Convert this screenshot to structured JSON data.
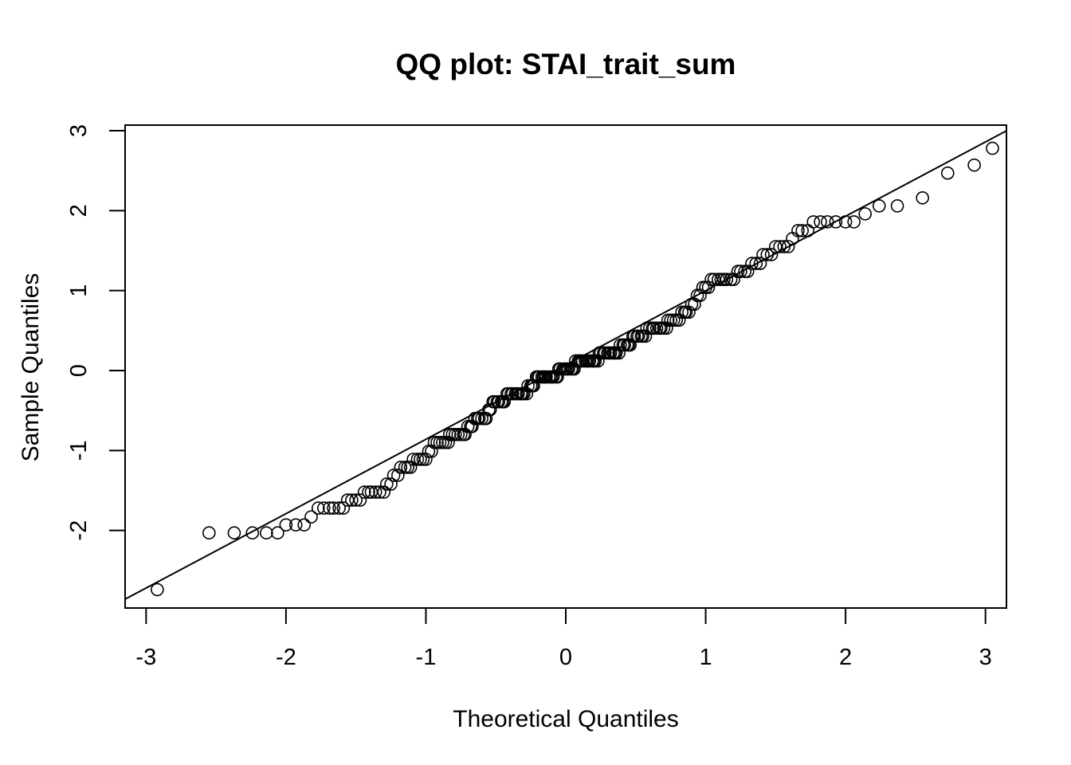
{
  "chart_data": {
    "type": "scatter",
    "title": "QQ plot: STAI_trait_sum",
    "xlabel": "Theoretical Quantiles",
    "ylabel": "Sample Quantiles",
    "xlim": [
      -3.15,
      3.15
    ],
    "ylim": [
      -2.97,
      3.07
    ],
    "x_ticks": [
      -3,
      -2,
      -1,
      0,
      1,
      2,
      3
    ],
    "x_tick_labels": [
      "-3",
      "-2",
      "-1",
      "0",
      "1",
      "2",
      "3"
    ],
    "y_ticks": [
      -2,
      -1,
      0,
      1,
      2,
      3
    ],
    "y_tick_labels": [
      "-2",
      "-1",
      "0",
      "1",
      "2",
      "3"
    ],
    "grid": false,
    "legend": false,
    "reference_line": {
      "intercept": 0.07,
      "slope": 0.93
    },
    "marker": "open-circle",
    "colors": {
      "points": "#000000",
      "line": "#000000",
      "background": "#ffffff"
    },
    "groups": [
      {
        "y": -2.74,
        "x": [
          -2.92
        ]
      },
      {
        "y": -2.03,
        "x": [
          -2.55,
          -2.37,
          -2.24,
          -2.14,
          -2.06
        ]
      },
      {
        "y": -1.93,
        "x": [
          -2.0,
          -1.93,
          -1.87
        ]
      },
      {
        "y": -1.83,
        "x": [
          -1.82
        ]
      },
      {
        "y": -1.72,
        "x": [
          -1.77,
          -1.73,
          -1.69,
          -1.66,
          -1.62,
          -1.59
        ]
      },
      {
        "y": -1.62,
        "x": [
          -1.56,
          -1.53,
          -1.5,
          -1.47
        ]
      },
      {
        "y": -1.52,
        "x": [
          -1.44,
          -1.41,
          -1.39,
          -1.36,
          -1.33,
          -1.3
        ]
      },
      {
        "y": -1.42,
        "x": [
          -1.28,
          -1.25
        ]
      },
      {
        "y": -1.31,
        "x": [
          -1.23,
          -1.2
        ]
      },
      {
        "y": -1.21,
        "x": [
          -1.18,
          -1.15,
          -1.13,
          -1.11
        ]
      },
      {
        "y": -1.11,
        "x": [
          -1.09,
          -1.06,
          -1.04,
          -1.02,
          -1.0
        ]
      },
      {
        "y": -1.01,
        "x": [
          -0.98,
          -0.96
        ]
      },
      {
        "y": -0.9,
        "x": [
          -0.94,
          -0.92,
          -0.9,
          -0.88,
          -0.86,
          -0.84
        ]
      },
      {
        "y": -0.8,
        "x": [
          -0.83,
          -0.81,
          -0.79,
          -0.77,
          -0.75,
          -0.73,
          -0.72
        ]
      },
      {
        "y": -0.7,
        "x": [
          -0.7,
          -0.68,
          -0.67
        ]
      },
      {
        "y": -0.6,
        "x": [
          -0.65,
          -0.63,
          -0.62,
          -0.6,
          -0.58,
          -0.57
        ]
      },
      {
        "y": -0.49,
        "x": [
          -0.55,
          -0.54
        ]
      },
      {
        "y": -0.39,
        "x": [
          -0.52,
          -0.51,
          -0.49,
          -0.48,
          -0.46,
          -0.45,
          -0.44
        ]
      },
      {
        "y": -0.29,
        "x": [
          -0.42,
          -0.41,
          -0.39,
          -0.38,
          -0.36,
          -0.35,
          -0.34,
          -0.32,
          -0.31,
          -0.3,
          -0.28
        ]
      },
      {
        "y": -0.19,
        "x": [
          -0.27,
          -0.25,
          -0.24,
          -0.23
        ]
      },
      {
        "y": -0.08,
        "x": [
          -0.21,
          -0.2,
          -0.19,
          -0.17,
          -0.16,
          -0.15,
          -0.14,
          -0.12,
          -0.11,
          -0.1,
          -0.09,
          -0.07,
          -0.06
        ]
      },
      {
        "y": 0.02,
        "x": [
          -0.05,
          -0.04,
          -0.02,
          -0.01,
          0.0,
          0.01,
          0.02,
          0.04,
          0.05,
          0.06
        ]
      },
      {
        "y": 0.12,
        "x": [
          0.07,
          0.09,
          0.1,
          0.11,
          0.12,
          0.14,
          0.15,
          0.16,
          0.17,
          0.19,
          0.2,
          0.21,
          0.23
        ]
      },
      {
        "y": 0.22,
        "x": [
          0.24,
          0.25,
          0.27,
          0.28,
          0.3,
          0.31,
          0.32,
          0.34,
          0.35,
          0.36,
          0.38
        ]
      },
      {
        "y": 0.32,
        "x": [
          0.39,
          0.41,
          0.42,
          0.44,
          0.45,
          0.46
        ]
      },
      {
        "y": 0.43,
        "x": [
          0.48,
          0.49,
          0.51,
          0.52,
          0.54,
          0.55,
          0.57
        ]
      },
      {
        "y": 0.53,
        "x": [
          0.58,
          0.6,
          0.62,
          0.63,
          0.65,
          0.67,
          0.68,
          0.7,
          0.72
        ]
      },
      {
        "y": 0.63,
        "x": [
          0.73,
          0.75,
          0.77,
          0.79,
          0.81
        ]
      },
      {
        "y": 0.73,
        "x": [
          0.83,
          0.85,
          0.86,
          0.88
        ]
      },
      {
        "y": 0.83,
        "x": [
          0.9,
          0.92
        ]
      },
      {
        "y": 0.94,
        "x": [
          0.94,
          0.96
        ]
      },
      {
        "y": 1.04,
        "x": [
          0.98,
          1.0,
          1.02
        ]
      },
      {
        "y": 1.14,
        "x": [
          1.04,
          1.06,
          1.09,
          1.11,
          1.13,
          1.15,
          1.18,
          1.2
        ]
      },
      {
        "y": 1.24,
        "x": [
          1.23,
          1.25,
          1.28,
          1.3
        ]
      },
      {
        "y": 1.34,
        "x": [
          1.33,
          1.36,
          1.39
        ]
      },
      {
        "y": 1.45,
        "x": [
          1.41,
          1.44,
          1.47
        ]
      },
      {
        "y": 1.55,
        "x": [
          1.5,
          1.53,
          1.56,
          1.59
        ]
      },
      {
        "y": 1.65,
        "x": [
          1.62
        ]
      },
      {
        "y": 1.75,
        "x": [
          1.66,
          1.69,
          1.73
        ]
      },
      {
        "y": 1.86,
        "x": [
          1.77,
          1.82,
          1.87,
          1.93,
          2.0,
          2.06
        ]
      },
      {
        "y": 1.96,
        "x": [
          2.14
        ]
      },
      {
        "y": 2.06,
        "x": [
          2.24,
          2.37
        ]
      },
      {
        "y": 2.16,
        "x": [
          2.55
        ]
      },
      {
        "y": 2.47,
        "x": [
          2.73
        ]
      },
      {
        "y": 2.57,
        "x": [
          2.92
        ]
      },
      {
        "y": 2.78,
        "x": [
          3.05
        ]
      }
    ]
  }
}
